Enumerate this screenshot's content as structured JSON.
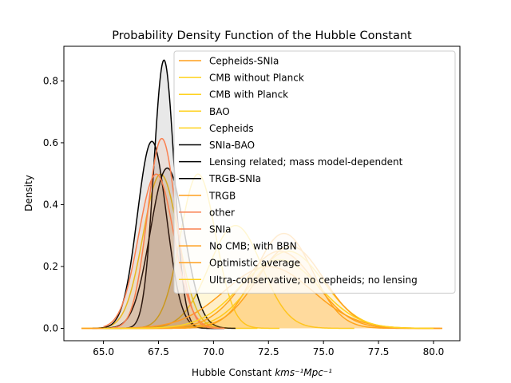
{
  "chart_data": {
    "type": "area",
    "title": "Probability Density Function of the Hubble Constant",
    "xlabel_main": "Hubble Constant ",
    "xlabel_units": "kms⁻¹Mpc⁻¹",
    "ylabel": "Density",
    "xlim": [
      63.2,
      81.2
    ],
    "ylim": [
      -0.04,
      0.912
    ],
    "xticks": [
      "65.0",
      "67.5",
      "70.0",
      "72.5",
      "75.0",
      "77.5",
      "80.0"
    ],
    "xtick_values": [
      65.0,
      67.5,
      70.0,
      72.5,
      75.0,
      77.5,
      80.0
    ],
    "yticks": [
      "0.0",
      "0.2",
      "0.4",
      "0.6",
      "0.8"
    ],
    "ytick_values": [
      0.0,
      0.2,
      0.4,
      0.6,
      0.8
    ],
    "legend_position": "upper-right",
    "series": [
      {
        "name": "Cepheids-SNIa",
        "color": "#ff9f1c",
        "mean": 73.2,
        "sd": 1.3,
        "xmin": 64.0,
        "xmax": 80.4
      },
      {
        "name": "CMB without Planck",
        "color": "#ffd21f",
        "mean": 71.0,
        "sd": 1.2,
        "xmin": 65.5,
        "xmax": 76.4
      },
      {
        "name": "CMB with Planck",
        "color": "#ffd21f",
        "mean": 67.6,
        "sd": 0.8,
        "xmin": 64.0,
        "xmax": 72.0
      },
      {
        "name": "BAO",
        "color": "#ffd21f",
        "mean": 69.3,
        "sd": 0.8,
        "xmin": 66.0,
        "xmax": 73.0
      },
      {
        "name": "Cepheids",
        "color": "#ffd21f",
        "mean": 73.4,
        "sd": 1.6,
        "xmin": 66.0,
        "xmax": 80.0
      },
      {
        "name": "SNIa-BAO",
        "color": "#000000",
        "mean": 67.2,
        "sd": 0.66,
        "xmin": 64.5,
        "xmax": 70.5
      },
      {
        "name": "Lensing related; mass model-dependent",
        "color": "#000000",
        "mean": 67.75,
        "sd": 0.46,
        "xmin": 65.0,
        "xmax": 70.5
      },
      {
        "name": "TRGB-SNIa",
        "color": "#000000",
        "mean": 67.9,
        "sd": 0.77,
        "xmin": 65.0,
        "xmax": 71.0
      },
      {
        "name": "TRGB",
        "color": "#ff9f1c",
        "mean": 72.5,
        "sd": 2.0,
        "xmin": 64.5,
        "xmax": 80.3
      },
      {
        "name": "other",
        "color": "#fa8050",
        "mean": 67.65,
        "sd": 0.65,
        "xmin": 65.0,
        "xmax": 70.5
      },
      {
        "name": "SNIa",
        "color": "#fa8050",
        "mean": 67.4,
        "sd": 0.8,
        "xmin": 65.0,
        "xmax": 70.5
      },
      {
        "name": "No CMB; with BBN",
        "color": "#ff9f1c",
        "mean": 73.0,
        "sd": 1.6,
        "xmin": 64.0,
        "xmax": 80.4
      },
      {
        "name": "Optimistic average",
        "color": "#ff9f1c",
        "mean": 73.5,
        "sd": 1.5,
        "xmin": 66.0,
        "xmax": 80.0
      },
      {
        "name": "Ultra-conservative; no cepheids; no lensing",
        "color": "#ffd21f",
        "mean": 73.0,
        "sd": 1.8,
        "xmin": 65.0,
        "xmax": 80.0
      }
    ]
  }
}
